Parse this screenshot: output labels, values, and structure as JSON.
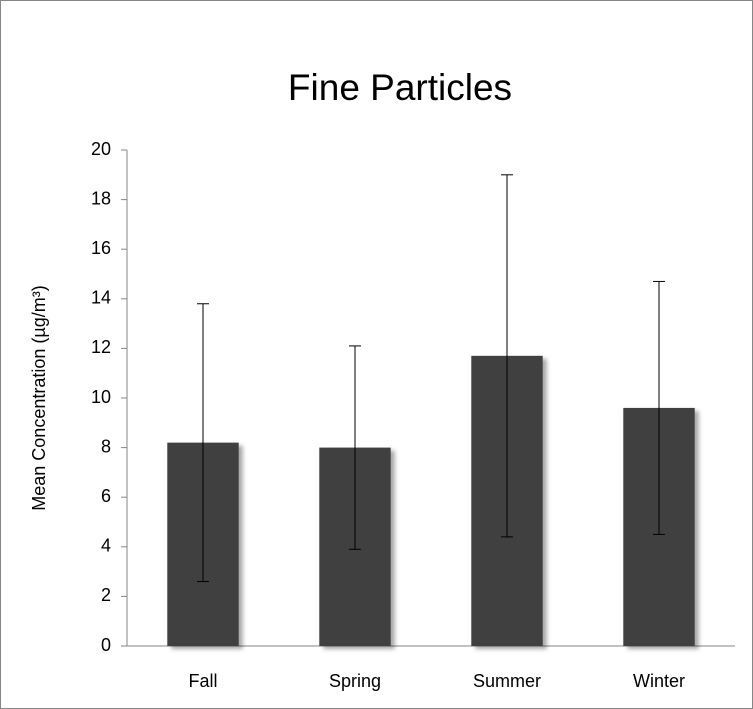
{
  "chart_data": {
    "type": "bar",
    "title": "Fine Particles",
    "y_label": "Mean Concentration (µg/m³)",
    "categories": [
      "Fall",
      "Spring",
      "Summer",
      "Winter"
    ],
    "values": [
      8.2,
      8.0,
      11.7,
      9.6
    ],
    "errors": [
      5.6,
      4.1,
      7.3,
      5.1
    ],
    "color": "#404040",
    "ylim": [
      0,
      20
    ],
    "yticks": [
      0,
      2,
      4,
      6,
      8,
      10,
      12,
      14,
      16,
      18,
      20
    ],
    "grid": false
  }
}
